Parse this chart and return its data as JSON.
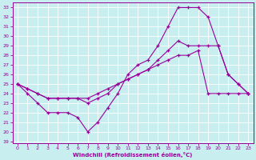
{
  "xlabel": "Windchill (Refroidissement éolien,°C)",
  "bg_color": "#c8eef0",
  "grid_color": "#ffffff",
  "line_color": "#990099",
  "xlim_min": -0.5,
  "xlim_max": 23.5,
  "ylim_min": 18.8,
  "ylim_max": 33.5,
  "xticks": [
    0,
    1,
    2,
    3,
    4,
    5,
    6,
    7,
    8,
    9,
    10,
    11,
    12,
    13,
    14,
    15,
    16,
    17,
    18,
    19,
    20,
    21,
    22,
    23
  ],
  "yticks": [
    19,
    20,
    21,
    22,
    23,
    24,
    25,
    26,
    27,
    28,
    29,
    30,
    31,
    32,
    33
  ],
  "curve_top_x": [
    0,
    1,
    2,
    3,
    4,
    5,
    6,
    7,
    8,
    9,
    10,
    11,
    12,
    13,
    14,
    15,
    16,
    17,
    18,
    19,
    20,
    21,
    22,
    23
  ],
  "curve_top_y": [
    25,
    24,
    23,
    22,
    22,
    22,
    21.5,
    20,
    21,
    22.5,
    24,
    26,
    27,
    27.5,
    29,
    31,
    33,
    33,
    33,
    32,
    29,
    26,
    25,
    24
  ],
  "curve_mid_x": [
    0,
    1,
    2,
    3,
    4,
    5,
    6,
    7,
    8,
    9,
    10,
    11,
    12,
    13,
    14,
    15,
    16,
    17,
    18,
    19,
    20,
    21,
    22,
    23
  ],
  "curve_mid_y": [
    25,
    24.5,
    24,
    23.5,
    23.5,
    23.5,
    23.5,
    23,
    23.5,
    24,
    25,
    25.5,
    26,
    26.5,
    27.5,
    28.5,
    29.5,
    29,
    29,
    29,
    29,
    26,
    25,
    24
  ],
  "curve_bot_x": [
    0,
    1,
    2,
    3,
    4,
    5,
    6,
    7,
    8,
    9,
    10,
    11,
    12,
    13,
    14,
    15,
    16,
    17,
    18,
    19,
    20,
    21,
    22,
    23
  ],
  "curve_bot_y": [
    25,
    24.5,
    24,
    23.5,
    23.5,
    23.5,
    23.5,
    23.5,
    24,
    24.5,
    25,
    25.5,
    26,
    26.5,
    27,
    27.5,
    28,
    28,
    28.5,
    24,
    24,
    24,
    24,
    24
  ]
}
